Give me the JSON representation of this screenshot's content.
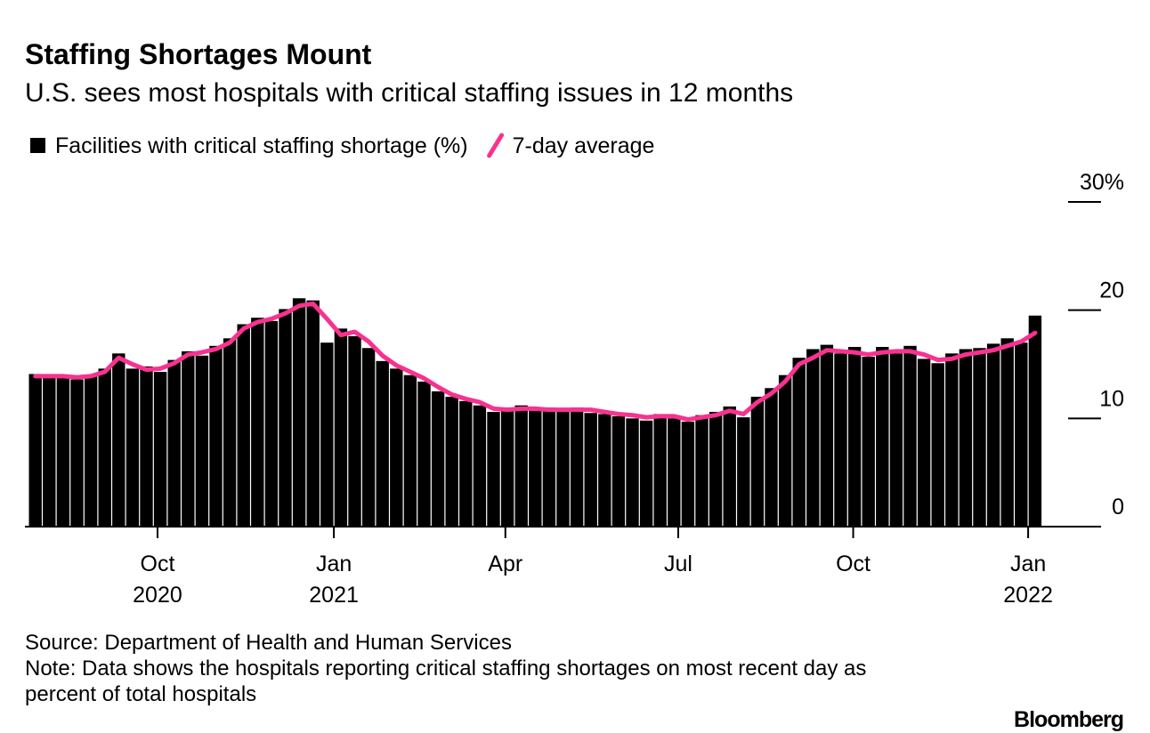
{
  "chart_data": {
    "type": "bar",
    "title": "Staffing Shortages Mount",
    "subtitle": "U.S. sees most hospitals with critical staffing issues in 12 months",
    "source": "Source: Department of Health and Human Services",
    "note": "Note: Data shows the hospitals reporting critical staffing shortages on most recent day as percent of total hospitals",
    "brand": "Bloomberg",
    "x": [
      2020.57,
      2020.59,
      2020.61,
      2020.63,
      2020.65,
      2020.67,
      2020.69,
      2020.71,
      2020.73,
      2020.75,
      2020.77,
      2020.79,
      2020.81,
      2020.83,
      2020.85,
      2020.87,
      2020.89,
      2020.91,
      2020.93,
      2020.95,
      2020.97,
      2020.99,
      2021.01,
      2021.03,
      2021.05,
      2021.07,
      2021.09,
      2021.11,
      2021.13,
      2021.15,
      2021.17,
      2021.19,
      2021.21,
      2021.23,
      2021.25,
      2021.27,
      2021.29,
      2021.31,
      2021.33,
      2021.35,
      2021.37,
      2021.39,
      2021.41,
      2021.43,
      2021.45,
      2021.47,
      2021.49,
      2021.51,
      2021.53,
      2021.55,
      2021.57,
      2021.59,
      2021.61,
      2021.63,
      2021.65,
      2021.67,
      2021.69,
      2021.71,
      2021.73,
      2021.75,
      2021.77,
      2021.79,
      2021.81,
      2021.83,
      2021.85,
      2021.87,
      2021.89,
      2021.91,
      2021.93,
      2021.95,
      2021.97,
      2021.99,
      2022.01
    ],
    "series": [
      {
        "name": "Facilities with critical staffing shortage (%)",
        "type": "bar",
        "color": "#000000",
        "values": [
          14.1,
          13.8,
          14.0,
          13.6,
          14.0,
          14.6,
          16.0,
          14.6,
          14.8,
          14.3,
          15.4,
          16.2,
          15.8,
          16.7,
          17.4,
          18.7,
          19.3,
          19.0,
          20.1,
          21.1,
          20.9,
          17.0,
          18.3,
          17.6,
          16.5,
          15.3,
          14.6,
          14.0,
          13.4,
          12.5,
          12.0,
          11.6,
          11.2,
          10.6,
          11.0,
          11.2,
          10.7,
          11.0,
          10.6,
          11.0,
          10.5,
          10.4,
          10.2,
          10.0,
          9.8,
          10.4,
          10.0,
          9.7,
          10.3,
          10.6,
          11.1,
          10.1,
          12.0,
          12.8,
          14.0,
          15.6,
          16.4,
          16.8,
          16.0,
          16.6,
          15.7,
          16.6,
          16.0,
          16.7,
          15.5,
          15.1,
          16.0,
          16.4,
          16.5,
          16.9,
          17.4,
          17.0,
          19.5
        ]
      },
      {
        "name": "7-day average",
        "type": "line",
        "color": "#f7328f",
        "values": [
          13.9,
          13.9,
          13.9,
          13.8,
          13.9,
          14.3,
          15.6,
          15.0,
          14.5,
          14.6,
          15.1,
          15.9,
          16.1,
          16.4,
          17.0,
          18.3,
          18.9,
          19.2,
          19.7,
          20.4,
          20.6,
          19.2,
          17.7,
          18.0,
          17.1,
          15.8,
          14.9,
          14.3,
          13.7,
          12.9,
          12.2,
          11.8,
          11.5,
          10.9,
          10.8,
          10.9,
          10.9,
          10.8,
          10.8,
          10.8,
          10.8,
          10.6,
          10.4,
          10.3,
          10.1,
          10.2,
          10.2,
          9.9,
          10.1,
          10.3,
          10.7,
          10.4,
          11.5,
          12.3,
          13.4,
          15.0,
          15.6,
          16.3,
          16.2,
          16.1,
          15.9,
          16.1,
          16.2,
          16.2,
          15.9,
          15.4,
          15.5,
          15.9,
          16.1,
          16.3,
          16.7,
          17.1,
          17.9
        ]
      }
    ],
    "xlim": [
      2020.555,
      2022.105
    ],
    "xticks": [
      {
        "value": 2020.746,
        "label": "Oct"
      },
      {
        "value": 2021.0,
        "label": "Jan"
      },
      {
        "value": 2021.247,
        "label": "Apr"
      },
      {
        "value": 2021.496,
        "label": "Jul"
      },
      {
        "value": 2021.748,
        "label": "Oct"
      },
      {
        "value": 2022.0,
        "label": "Jan"
      }
    ],
    "xtick_years": [
      {
        "value": 2020.746,
        "label": "2020"
      },
      {
        "value": 2021.0,
        "label": "2021"
      },
      {
        "value": 2022.0,
        "label": "2022"
      }
    ],
    "ylim": [
      0,
      30
    ],
    "yticks": [
      0,
      10,
      20,
      {
        "value": 30,
        "label": "30%"
      }
    ]
  }
}
